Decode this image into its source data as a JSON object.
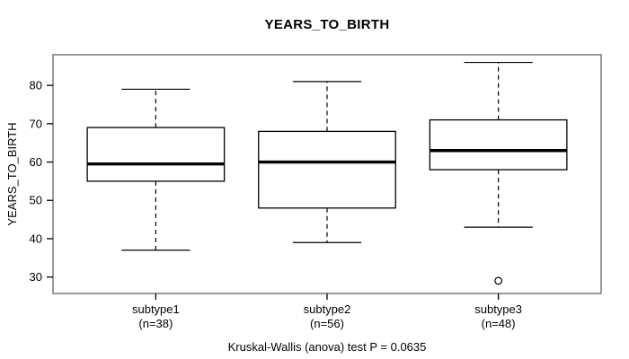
{
  "chart_data": {
    "type": "boxplot",
    "title": "YEARS_TO_BIRTH",
    "ylabel": "YEARS_TO_BIRTH",
    "annotation": "Kruskal-Wallis (anova) test P = 0.0635",
    "ylim": [
      25.7,
      88.0
    ],
    "xlim": [
      0.4,
      3.6
    ],
    "yticks": [
      30,
      40,
      50,
      60,
      70,
      80
    ],
    "box_width": 0.8,
    "cap_width": 0.4,
    "grid": false,
    "legend": null,
    "groups": [
      {
        "id": "subtype1",
        "label": "subtype1",
        "n_label": "(n=38)",
        "n": 38,
        "low": 37,
        "q1": 55,
        "median": 59.5,
        "q3": 69,
        "high": 79,
        "outliers": []
      },
      {
        "id": "subtype2",
        "label": "subtype2",
        "n_label": "(n=56)",
        "n": 56,
        "low": 39,
        "q1": 48,
        "median": 60,
        "q3": 68,
        "high": 81,
        "outliers": []
      },
      {
        "id": "subtype3",
        "label": "subtype3",
        "n_label": "(n=48)",
        "n": 48,
        "low": 43,
        "q1": 58,
        "median": 63,
        "q3": 71,
        "high": 86,
        "outliers": [
          29
        ]
      }
    ],
    "colors": {
      "line": "#000000",
      "frame": "#808080",
      "background": "#ffffff"
    }
  }
}
